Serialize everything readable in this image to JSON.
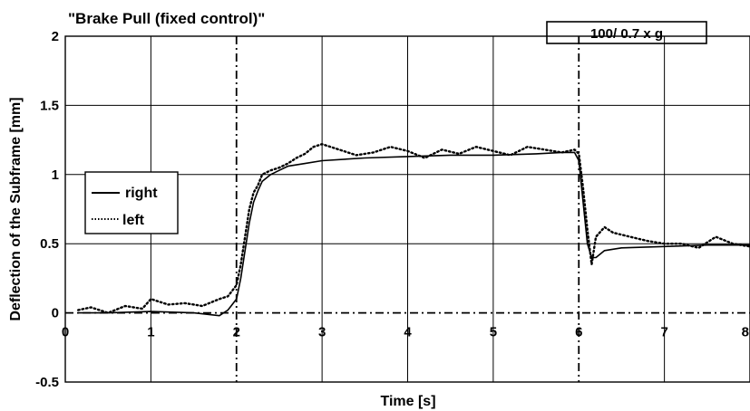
{
  "chart_data": {
    "type": "line",
    "title": "\"Brake Pull (fixed control)\"",
    "annotation": "100/ 0.7 x g",
    "xlabel": "Time [s]",
    "ylabel": "Deflection of the Subframe [mm]",
    "xlim": [
      0,
      8
    ],
    "ylim": [
      -0.5,
      2
    ],
    "x_ticks": [
      "0",
      "1",
      "2",
      "3",
      "4",
      "5",
      "6",
      "7",
      "8"
    ],
    "y_ticks": [
      "-0.5",
      "0",
      "0.5",
      "1",
      "1.5",
      "2"
    ],
    "grid": true,
    "reference_lines": {
      "vertical_dashdot_x": [
        2,
        6
      ],
      "horizontal_dashdot_y": 0
    },
    "legend_position": "left",
    "legend": [
      "right",
      "left"
    ],
    "series": [
      {
        "name": "right",
        "style": "solid",
        "x": [
          0.15,
          0.5,
          1.0,
          1.5,
          1.8,
          1.9,
          2.0,
          2.05,
          2.1,
          2.15,
          2.2,
          2.25,
          2.3,
          2.4,
          2.5,
          2.6,
          2.8,
          3.0,
          3.5,
          4.0,
          4.5,
          5.0,
          5.5,
          5.8,
          5.95,
          6.0,
          6.05,
          6.1,
          6.15,
          6.2,
          6.3,
          6.5,
          7.0,
          7.5,
          8.0
        ],
        "y": [
          0.0,
          0.0,
          0.01,
          0.0,
          -0.02,
          0.02,
          0.1,
          0.25,
          0.45,
          0.65,
          0.8,
          0.88,
          0.95,
          1.0,
          1.03,
          1.06,
          1.08,
          1.1,
          1.12,
          1.13,
          1.14,
          1.14,
          1.15,
          1.16,
          1.16,
          1.1,
          0.8,
          0.5,
          0.4,
          0.4,
          0.45,
          0.47,
          0.48,
          0.49,
          0.49
        ]
      },
      {
        "name": "left",
        "style": "dotted",
        "x": [
          0.15,
          0.3,
          0.5,
          0.7,
          0.9,
          1.0,
          1.2,
          1.4,
          1.6,
          1.8,
          1.9,
          2.0,
          2.05,
          2.1,
          2.15,
          2.2,
          2.25,
          2.3,
          2.4,
          2.5,
          2.6,
          2.7,
          2.8,
          2.9,
          3.0,
          3.2,
          3.4,
          3.6,
          3.8,
          4.0,
          4.2,
          4.4,
          4.6,
          4.8,
          5.0,
          5.2,
          5.4,
          5.6,
          5.8,
          5.95,
          6.0,
          6.05,
          6.1,
          6.15,
          6.2,
          6.3,
          6.4,
          6.6,
          6.8,
          7.0,
          7.2,
          7.4,
          7.6,
          7.8,
          8.0
        ],
        "y": [
          0.02,
          0.04,
          0.0,
          0.05,
          0.03,
          0.1,
          0.06,
          0.07,
          0.05,
          0.1,
          0.12,
          0.2,
          0.35,
          0.55,
          0.75,
          0.87,
          0.92,
          1.0,
          1.03,
          1.05,
          1.08,
          1.12,
          1.15,
          1.2,
          1.22,
          1.18,
          1.14,
          1.16,
          1.2,
          1.17,
          1.12,
          1.18,
          1.15,
          1.2,
          1.17,
          1.14,
          1.2,
          1.18,
          1.16,
          1.18,
          1.15,
          0.9,
          0.6,
          0.35,
          0.55,
          0.62,
          0.58,
          0.55,
          0.52,
          0.5,
          0.5,
          0.47,
          0.55,
          0.5,
          0.48
        ]
      }
    ]
  }
}
